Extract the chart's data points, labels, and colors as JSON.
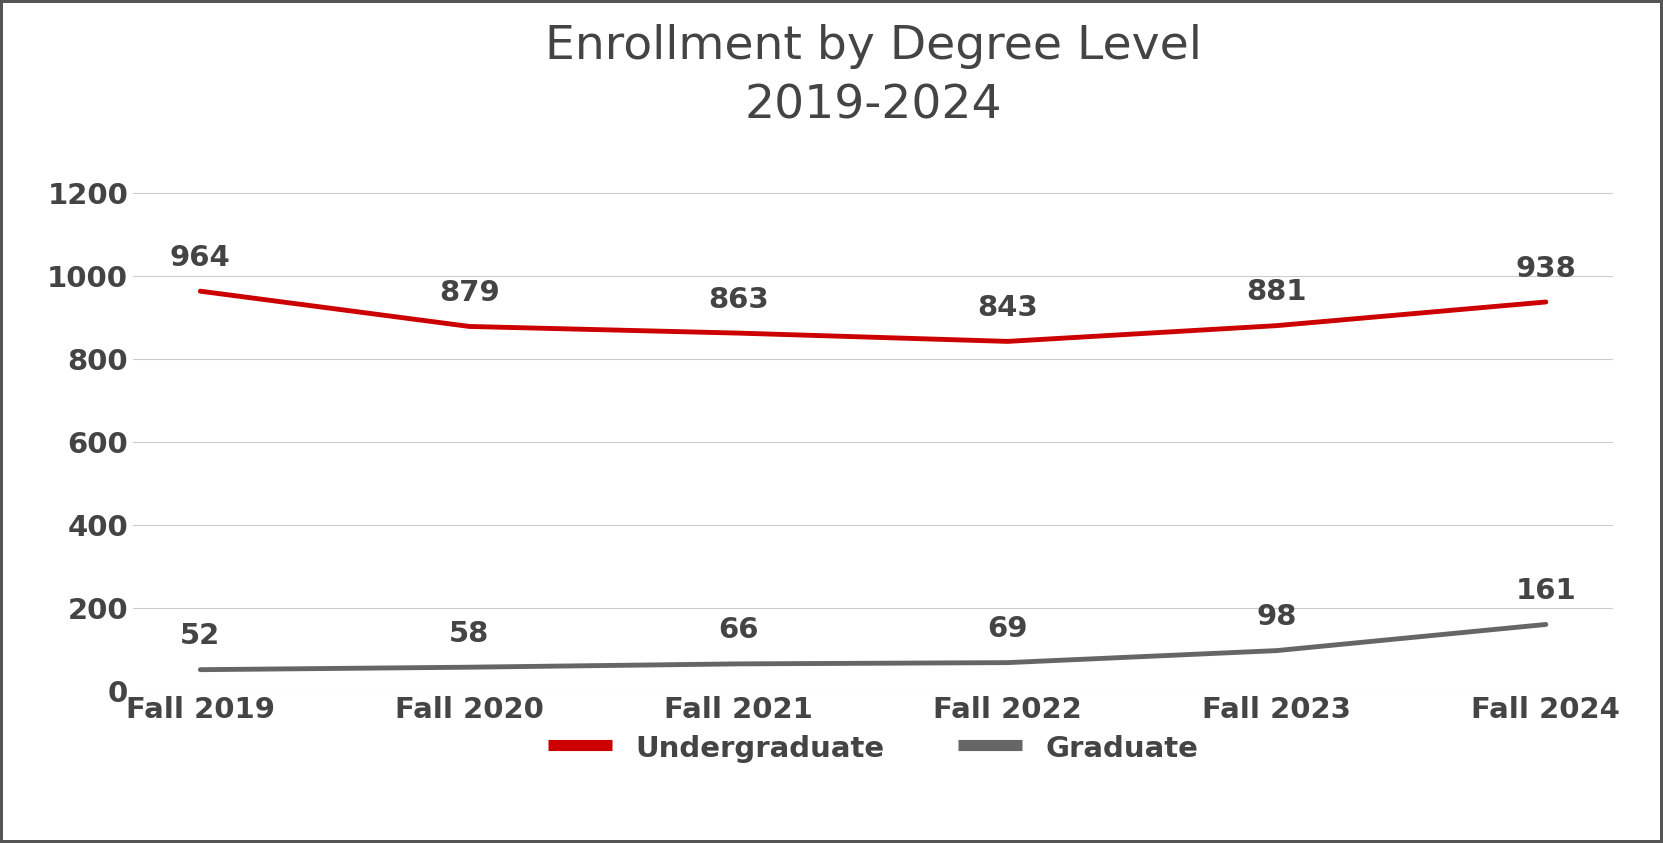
{
  "title_line1": "Enrollment by Degree Level",
  "title_line2": "2019-2024",
  "x_labels": [
    "Fall 2019",
    "Fall 2020",
    "Fall 2021",
    "Fall 2022",
    "Fall 2023",
    "Fall 2024"
  ],
  "undergraduate_values": [
    964,
    879,
    863,
    843,
    881,
    938
  ],
  "graduate_values": [
    52,
    58,
    66,
    69,
    98,
    161
  ],
  "undergrad_color": "#CC0000",
  "grad_color": "#666666",
  "ylim": [
    0,
    1300
  ],
  "yticks": [
    0,
    200,
    400,
    600,
    800,
    1000,
    1200
  ],
  "background_color": "#FFFFFF",
  "outer_border_color": "#555555",
  "title_fontsize": 34,
  "tick_fontsize": 21,
  "legend_fontsize": 21,
  "annotation_fontsize": 21,
  "line_width": 3.5,
  "legend_label_undergrad": "Undergraduate",
  "legend_label_grad": "Graduate",
  "text_color": "#444444",
  "grid_color": "#CCCCCC"
}
